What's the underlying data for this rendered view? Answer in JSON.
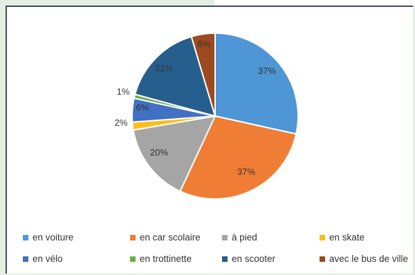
{
  "chart_data": {
    "type": "pie",
    "slices": [
      {
        "label": "en voiture",
        "value": 37,
        "display": "37%",
        "color": "#4e96d5"
      },
      {
        "label": "en car scolaire",
        "value": 37,
        "display": "37%",
        "color": "#f07d35"
      },
      {
        "label": "à pied",
        "value": 20,
        "display": "20%",
        "color": "#a5a5a5"
      },
      {
        "label": "en skate",
        "value": 2,
        "display": "2%",
        "color": "#fdbe1c"
      },
      {
        "label": "en vélo",
        "value": 6,
        "display": "6%",
        "color": "#4270c3"
      },
      {
        "label": "en trottinette",
        "value": 1,
        "display": "1%",
        "color": "#6fad48"
      },
      {
        "label": "en scooter",
        "value": 21,
        "display": "21%",
        "color": "#265e8e"
      },
      {
        "label": "avec le bus de ville",
        "value": 6,
        "display": "6%",
        "color": "#9c4a1f"
      }
    ],
    "legend_position": "bottom"
  }
}
